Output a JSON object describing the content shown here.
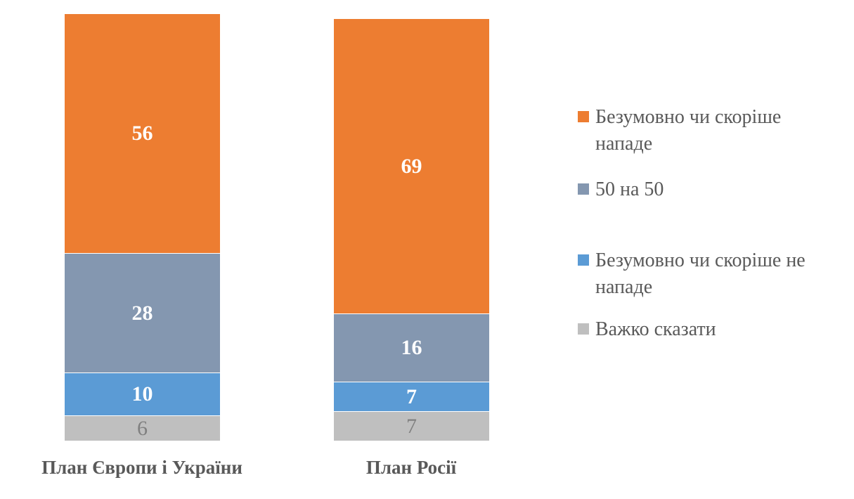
{
  "chart_data": {
    "type": "bar",
    "variant": "stacked-column",
    "title": "",
    "xlabel": "",
    "ylabel": "",
    "ylim": [
      0,
      100
    ],
    "grid": false,
    "axes_visible": false,
    "legend_position": "right",
    "text_color": "#595959",
    "categories": [
      "План Європи і України",
      "План Росії"
    ],
    "series": [
      {
        "name": "Безумовно чи скоріше нападе",
        "color": "#ED7D31",
        "label_color": "#FFFFFF",
        "values": [
          56,
          69
        ]
      },
      {
        "name": "50 на 50",
        "color": "#8497B0",
        "label_color": "#FFFFFF",
        "values": [
          28,
          16
        ]
      },
      {
        "name": "Безумовно чи скоріше не нападе",
        "color": "#5B9BD5",
        "label_color": "#FFFFFF",
        "values": [
          10,
          7
        ]
      },
      {
        "name": "Важко сказати",
        "color": "#BFBFBF",
        "label_color": "#808080",
        "values": [
          6,
          7
        ]
      }
    ]
  }
}
